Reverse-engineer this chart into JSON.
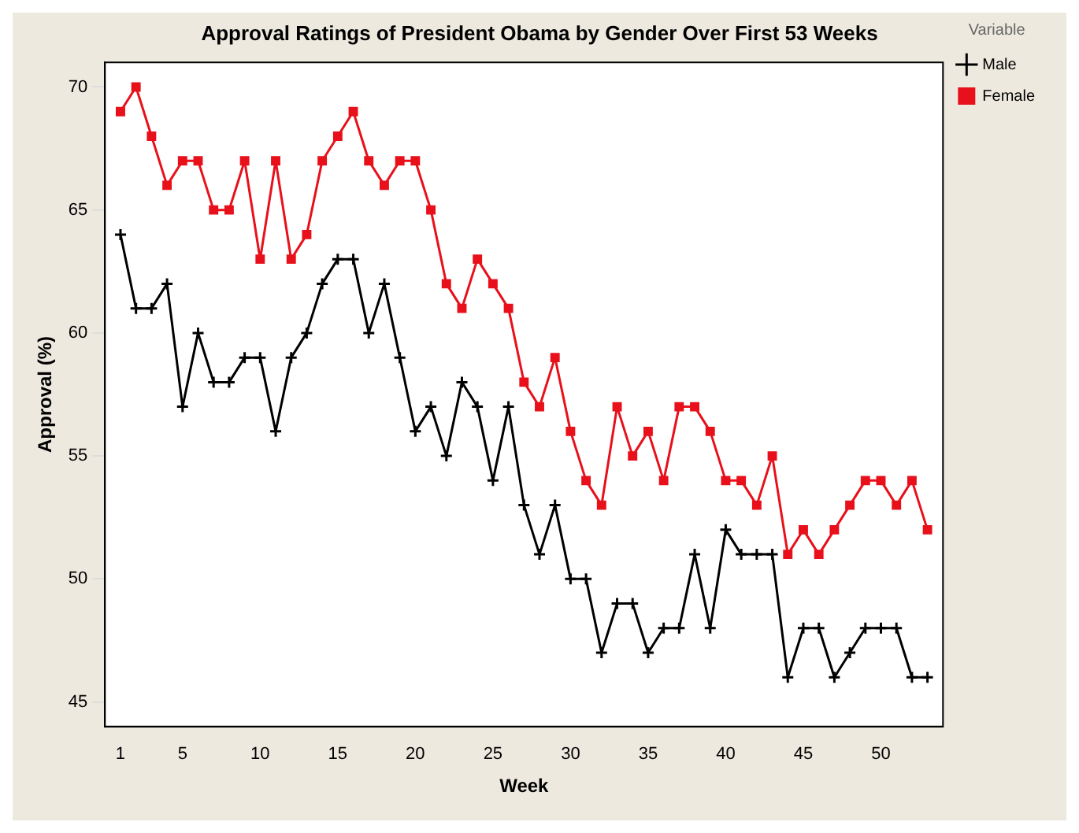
{
  "chart_data": {
    "type": "line",
    "title": "Approval Ratings of President Obama by Gender Over First 53 Weeks",
    "xlabel": "Week",
    "ylabel": "Approval (%)",
    "legend_title": "Variable",
    "legend": "top right",
    "x": [
      1,
      2,
      3,
      4,
      5,
      6,
      7,
      8,
      9,
      10,
      11,
      12,
      13,
      14,
      15,
      16,
      17,
      18,
      19,
      20,
      21,
      22,
      23,
      24,
      25,
      26,
      27,
      28,
      29,
      30,
      31,
      32,
      33,
      34,
      35,
      36,
      37,
      38,
      39,
      40,
      41,
      42,
      43,
      44,
      45,
      46,
      47,
      48,
      49,
      50,
      51,
      52,
      53
    ],
    "series": [
      {
        "name": "Male",
        "color": "#000000",
        "marker": "cross",
        "values": [
          64,
          61,
          61,
          62,
          57,
          60,
          58,
          58,
          59,
          59,
          56,
          59,
          60,
          62,
          63,
          63,
          60,
          62,
          59,
          56,
          57,
          55,
          58,
          57,
          54,
          57,
          53,
          51,
          53,
          50,
          50,
          47,
          49,
          49,
          47,
          48,
          48,
          51,
          48,
          52,
          51,
          51,
          51,
          46,
          48,
          48,
          46,
          47,
          48,
          48,
          48,
          46,
          46
        ]
      },
      {
        "name": "Female",
        "color": "#e8101a",
        "marker": "square",
        "values": [
          69,
          70,
          68,
          66,
          67,
          67,
          65,
          65,
          67,
          63,
          67,
          63,
          64,
          67,
          68,
          69,
          67,
          66,
          67,
          67,
          65,
          62,
          61,
          63,
          62,
          61,
          58,
          57,
          59,
          56,
          54,
          53,
          57,
          55,
          56,
          54,
          57,
          57,
          56,
          54,
          54,
          53,
          55,
          51,
          52,
          51,
          52,
          53,
          54,
          54,
          53,
          54,
          52
        ]
      }
    ],
    "xlim": [
      0,
      54
    ],
    "xticks": [
      1,
      5,
      10,
      15,
      20,
      25,
      30,
      35,
      40,
      45,
      50
    ],
    "ylim": [
      44,
      71
    ],
    "yticks": [
      45,
      50,
      55,
      60,
      65,
      70
    ],
    "grid": false,
    "line_style": "solid"
  }
}
